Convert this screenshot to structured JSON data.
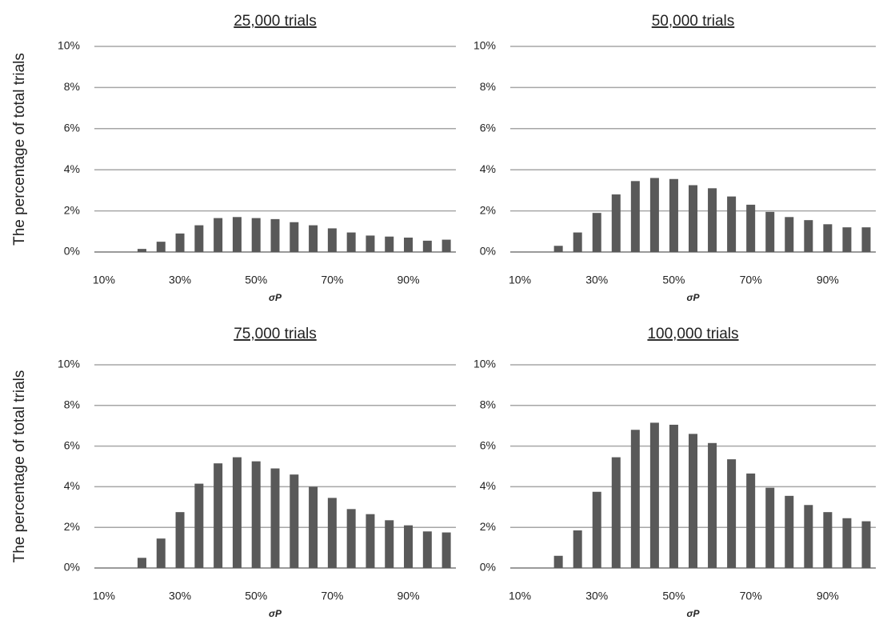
{
  "chart_data": [
    {
      "type": "bar",
      "title": "25,000 trials",
      "y_label": "The percentage of total trials",
      "x_label": "σP",
      "color": "#595959",
      "categories": [
        "10%",
        null,
        null,
        null,
        "30%",
        null,
        null,
        null,
        "50%",
        null,
        null,
        null,
        "70%",
        null,
        null,
        null,
        "90%",
        null,
        null
      ],
      "values": [
        0,
        0,
        0.15,
        0.5,
        0.9,
        1.3,
        1.65,
        1.7,
        1.65,
        1.6,
        1.45,
        1.3,
        1.15,
        0.95,
        0.8,
        0.75,
        0.7,
        0.55,
        0.6
      ],
      "ylim": [
        0,
        10
      ],
      "yticks": [
        {
          "value": 0,
          "label": "0%"
        },
        {
          "value": 2,
          "label": "2%"
        },
        {
          "value": 4,
          "label": "4%"
        },
        {
          "value": 6,
          "label": "6%"
        },
        {
          "value": 8,
          "label": "8%"
        },
        {
          "value": 10,
          "label": "10%"
        }
      ],
      "grid": true
    },
    {
      "type": "bar",
      "title": "50,000 trials",
      "x_label": "σP",
      "color": "#595959",
      "categories": [
        "10%",
        null,
        null,
        null,
        "30%",
        null,
        null,
        null,
        "50%",
        null,
        null,
        null,
        "70%",
        null,
        null,
        null,
        "90%",
        null,
        null
      ],
      "values": [
        0,
        0,
        0.3,
        0.95,
        1.9,
        2.8,
        3.45,
        3.6,
        3.55,
        3.25,
        3.1,
        2.7,
        2.3,
        1.95,
        1.7,
        1.55,
        1.35,
        1.2,
        1.2
      ],
      "ylim": [
        0,
        10
      ],
      "yticks": [
        {
          "value": 0,
          "label": "0%"
        },
        {
          "value": 2,
          "label": "2%"
        },
        {
          "value": 4,
          "label": "4%"
        },
        {
          "value": 6,
          "label": "6%"
        },
        {
          "value": 8,
          "label": "8%"
        },
        {
          "value": 10,
          "label": "10%"
        }
      ],
      "grid": true
    },
    {
      "type": "bar",
      "title": "75,000 trials",
      "y_label": "The percentage of total trials",
      "x_label": "σP",
      "color": "#595959",
      "categories": [
        "10%",
        null,
        null,
        null,
        "30%",
        null,
        null,
        null,
        "50%",
        null,
        null,
        null,
        "70%",
        null,
        null,
        null,
        "90%",
        null,
        null
      ],
      "values": [
        0,
        0,
        0.5,
        1.45,
        2.75,
        4.15,
        5.15,
        5.45,
        5.25,
        4.9,
        4.6,
        4.0,
        3.45,
        2.9,
        2.65,
        2.35,
        2.1,
        1.8,
        1.75
      ],
      "ylim": [
        0,
        10
      ],
      "yticks": [
        {
          "value": 0,
          "label": "0%"
        },
        {
          "value": 2,
          "label": "2%"
        },
        {
          "value": 4,
          "label": "4%"
        },
        {
          "value": 6,
          "label": "6%"
        },
        {
          "value": 8,
          "label": "8%"
        },
        {
          "value": 10,
          "label": "10%"
        }
      ],
      "grid": true
    },
    {
      "type": "bar",
      "title": "100,000 trials",
      "x_label": "σP",
      "color": "#595959",
      "categories": [
        "10%",
        null,
        null,
        null,
        "30%",
        null,
        null,
        null,
        "50%",
        null,
        null,
        null,
        "70%",
        null,
        null,
        null,
        "90%",
        null,
        null
      ],
      "values": [
        0,
        0,
        0.6,
        1.85,
        3.75,
        5.45,
        6.8,
        7.15,
        7.05,
        6.6,
        6.15,
        5.35,
        4.65,
        3.95,
        3.55,
        3.1,
        2.75,
        2.45,
        2.3
      ],
      "ylim": [
        0,
        10
      ],
      "yticks": [
        {
          "value": 0,
          "label": "0%"
        },
        {
          "value": 2,
          "label": "2%"
        },
        {
          "value": 4,
          "label": "4%"
        },
        {
          "value": 6,
          "label": "6%"
        },
        {
          "value": 8,
          "label": "8%"
        },
        {
          "value": 10,
          "label": "10%"
        }
      ],
      "grid": true
    }
  ]
}
